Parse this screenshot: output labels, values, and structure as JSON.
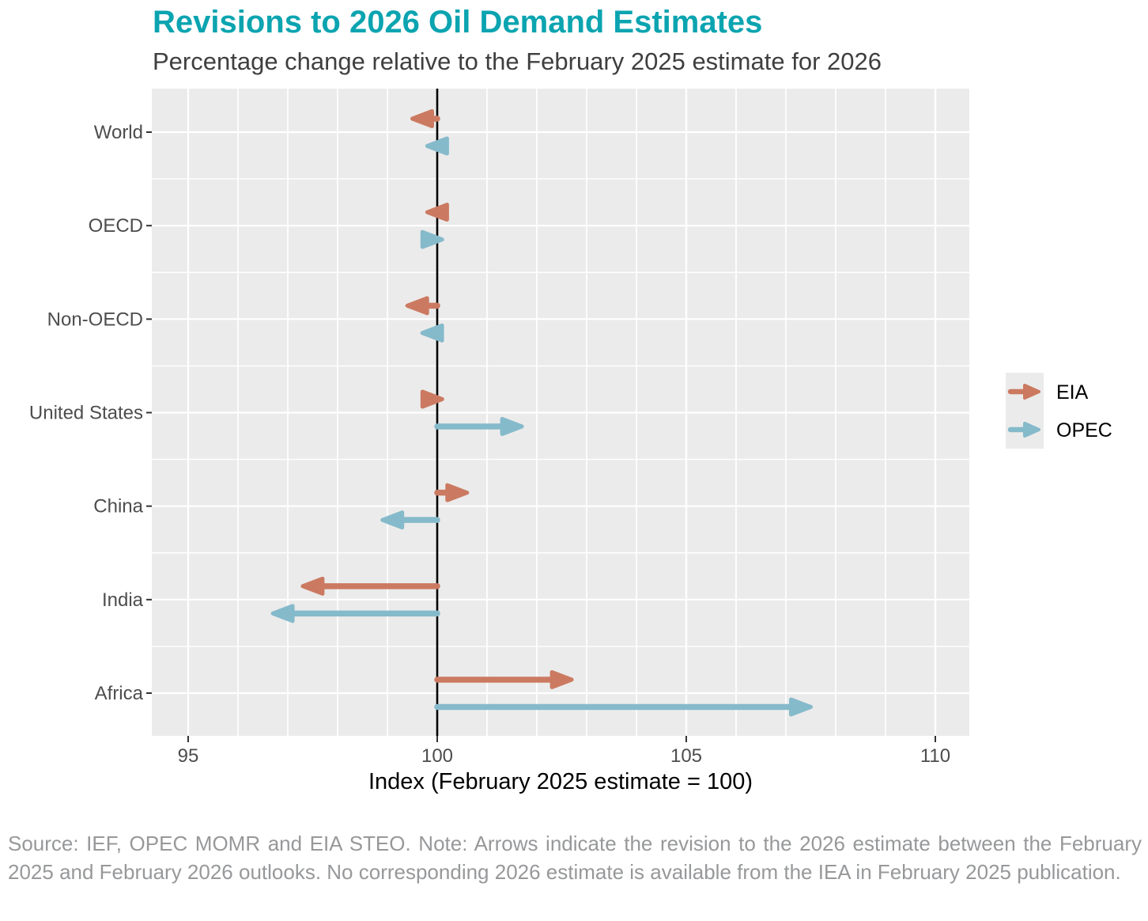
{
  "page": {
    "title": "Revisions to 2026 Oil Demand Estimates",
    "subtitle": "Percentage change relative to the February 2025 estimate for 2026",
    "footer": "Source: IEF, OPEC MOMR and EIA STEO. Note: Arrows indicate the revision to the 2026 estimate between the February 2025 and February 2026 outlooks. No corresponding 2026 estimate is available from the IEA in February 2025 publication."
  },
  "colors": {
    "title": "#0ba4b0",
    "subtitle": "#3f3f3f",
    "eia": "#cb7a61",
    "opec": "#85bacb",
    "panel_bg": "#ebebeb",
    "grid": "#ffffff",
    "baseline_line": "#000000",
    "axis_text": "#4d4d4d",
    "axis_title": "#000000",
    "tick": "#333333",
    "legend_text": "#000000",
    "footer_text": "#97989a"
  },
  "chart_data": {
    "type": "arrow",
    "orientation": "horizontal",
    "title": "Revisions to 2026 Oil Demand Estimates",
    "subtitle": "Percentage change relative to the February 2025 estimate for 2026",
    "categories": [
      "World",
      "OECD",
      "Non-OECD",
      "United States",
      "China",
      "India",
      "Africa"
    ],
    "series": [
      {
        "name": "EIA",
        "color_key": "eia",
        "values": [
          99.5,
          99.8,
          99.4,
          100.1,
          100.6,
          97.3,
          102.7
        ]
      },
      {
        "name": "OPEC",
        "color_key": "opec",
        "values": [
          99.8,
          100.1,
          99.7,
          101.7,
          98.9,
          96.7,
          107.5
        ]
      }
    ],
    "baseline": 100,
    "arrows_start_at_baseline": true,
    "xlabel": "Index (February 2025 estimate = 100)",
    "x_major_ticks": [
      95,
      100,
      105,
      110
    ],
    "x_minor_step": 1,
    "xlim": [
      94.3,
      110.7
    ],
    "grid": true,
    "legend": {
      "position": "right",
      "entries": [
        "EIA",
        "OPEC"
      ]
    }
  }
}
